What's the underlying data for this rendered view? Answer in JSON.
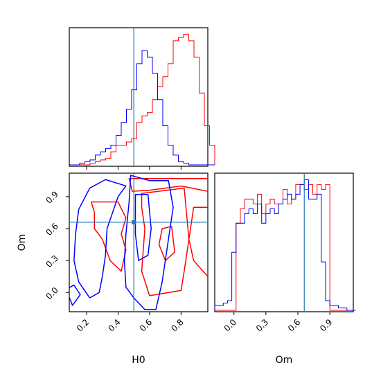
{
  "chart_data": {
    "type": "corner",
    "colors": {
      "red": "#ff0000",
      "blue": "#0000ff",
      "truth": "#1f77b4"
    },
    "truth": {
      "H0": 0.5,
      "Om": 0.66
    },
    "params": [
      "H0",
      "Om"
    ],
    "xlabels": {
      "bottom_left": "H0",
      "bottom_right": "Om"
    },
    "ylabels": {
      "bottom_left": "Om"
    },
    "h0_panel": {
      "xlim": [
        0.09,
        0.97
      ],
      "bin_width": 0.033,
      "bin_start": 0.09,
      "red_counts": [
        0,
        0,
        0,
        0,
        0.5,
        1,
        1.5,
        2,
        4,
        6,
        6,
        7,
        8,
        13,
        15,
        16,
        20,
        24,
        27,
        31,
        38,
        39,
        40,
        38,
        33,
        22,
        12,
        6
      ],
      "blue_counts": [
        0,
        0,
        0.5,
        1,
        1.5,
        3,
        4,
        5,
        6,
        9,
        13,
        17,
        23,
        31,
        35,
        33,
        28,
        20,
        12,
        6,
        3,
        1,
        0.5,
        0,
        0,
        0,
        0,
        0
      ]
    },
    "om_panel": {
      "xlim": [
        -0.18,
        1.12
      ],
      "bin_width": 0.04,
      "bin_start": -0.18,
      "red_counts": [
        0,
        0,
        0,
        0,
        0,
        18,
        21,
        23,
        23,
        22,
        24,
        20,
        22,
        23,
        22,
        22,
        25,
        22,
        23,
        26,
        26,
        25,
        26,
        24,
        26,
        25,
        26,
        0,
        0,
        0,
        0,
        0,
        0
      ],
      "blue_counts": [
        1,
        1,
        1.5,
        2,
        12,
        18,
        18,
        20,
        21,
        20,
        22,
        18,
        20,
        21,
        20,
        22,
        23,
        24,
        23,
        24,
        26,
        27,
        23,
        23,
        24,
        10,
        2,
        1,
        1,
        0.5,
        0.5,
        0,
        0
      ]
    },
    "scatter_panel": {
      "xlim": [
        0.09,
        0.97
      ],
      "ylim": [
        -0.18,
        1.12
      ],
      "red_contours": [
        [
          [
            0.23,
            0.85
          ],
          [
            0.4,
            0.85
          ],
          [
            0.45,
            0.7
          ],
          [
            0.42,
            0.55
          ],
          [
            0.45,
            0.4
          ],
          [
            0.42,
            0.2
          ],
          [
            0.35,
            0.3
          ],
          [
            0.3,
            0.5
          ],
          [
            0.25,
            0.6
          ],
          [
            0.25,
            0.75
          ]
        ],
        [
          [
            0.47,
            1.07
          ],
          [
            0.97,
            1.07
          ],
          [
            0.97,
            0.95
          ],
          [
            0.8,
            1.0
          ],
          [
            0.6,
            0.96
          ],
          [
            0.49,
            0.95
          ]
        ],
        [
          [
            0.55,
            0.93
          ],
          [
            0.82,
            0.98
          ],
          [
            0.85,
            0.5
          ],
          [
            0.82,
            0.2
          ],
          [
            0.8,
            0.02
          ],
          [
            0.6,
            -0.03
          ],
          [
            0.55,
            0.2
          ],
          [
            0.57,
            0.6
          ],
          [
            0.55,
            0.8
          ]
        ],
        [
          [
            0.97,
            0.8
          ],
          [
            0.88,
            0.8
          ],
          [
            0.85,
            0.5
          ],
          [
            0.88,
            0.3
          ],
          [
            0.97,
            0.15
          ]
        ],
        [
          [
            0.68,
            0.6
          ],
          [
            0.74,
            0.62
          ],
          [
            0.76,
            0.38
          ],
          [
            0.7,
            0.3
          ],
          [
            0.66,
            0.45
          ]
        ]
      ],
      "blue_contours": [
        [
          [
            0.15,
            0.78
          ],
          [
            0.22,
            0.98
          ],
          [
            0.32,
            1.06
          ],
          [
            0.45,
            1.0
          ],
          [
            0.4,
            0.9
          ],
          [
            0.33,
            0.6
          ],
          [
            0.32,
            0.35
          ],
          [
            0.3,
            0.15
          ],
          [
            0.28,
            0.0
          ],
          [
            0.22,
            -0.05
          ],
          [
            0.15,
            0.1
          ],
          [
            0.12,
            0.3
          ],
          [
            0.13,
            0.55
          ]
        ],
        [
          [
            0.48,
            1.1
          ],
          [
            0.6,
            1.05
          ],
          [
            0.72,
            1.05
          ],
          [
            0.75,
            0.8
          ],
          [
            0.72,
            0.5
          ],
          [
            0.7,
            0.3
          ],
          [
            0.68,
            0.1
          ],
          [
            0.64,
            -0.16
          ],
          [
            0.57,
            -0.16
          ],
          [
            0.5,
            -0.05
          ],
          [
            0.45,
            0.05
          ],
          [
            0.44,
            0.3
          ],
          [
            0.45,
            0.55
          ],
          [
            0.47,
            0.85
          ]
        ],
        [
          [
            0.51,
            0.92
          ],
          [
            0.59,
            0.92
          ],
          [
            0.61,
            0.6
          ],
          [
            0.59,
            0.35
          ],
          [
            0.53,
            0.3
          ],
          [
            0.51,
            0.55
          ]
        ],
        [
          [
            0.07,
            0.03
          ],
          [
            0.12,
            0.07
          ],
          [
            0.16,
            -0.02
          ],
          [
            0.11,
            -0.12
          ]
        ]
      ]
    },
    "x_ticks": {
      "h0": [
        0.2,
        0.4,
        0.6,
        0.8
      ],
      "h0_labels": [
        "0.2",
        "0.4",
        "0.6",
        "0.8"
      ],
      "om": [
        0.0,
        0.3,
        0.6,
        0.9
      ],
      "om_labels": [
        "0.0",
        "0.3",
        "0.6",
        "0.9"
      ]
    },
    "y_ticks": {
      "om": [
        0.0,
        0.3,
        0.6,
        0.9
      ],
      "om_labels": [
        "0.0",
        "0.3",
        "0.6",
        "0.9"
      ]
    }
  }
}
